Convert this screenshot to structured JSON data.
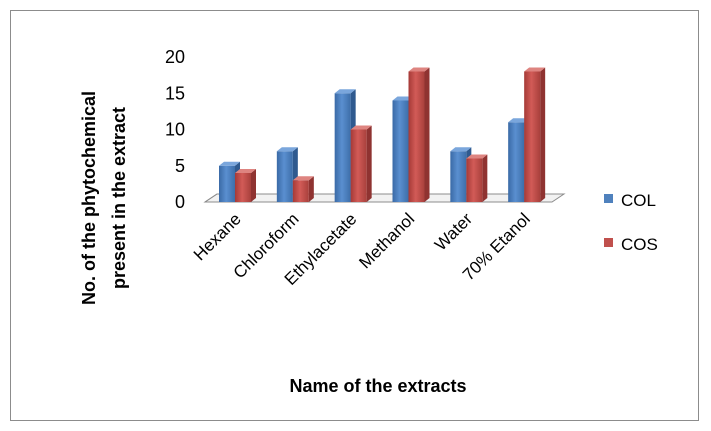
{
  "chart_data": {
    "type": "bar",
    "title": "",
    "xlabel": "Name of the extracts",
    "ylabel_lines": [
      "No. of the phytochemical",
      "present in the extract"
    ],
    "categories": [
      "Hexane",
      "Chloroform",
      "Ethylacetate",
      "Methanol",
      "Water",
      "70% Etanol"
    ],
    "series": [
      {
        "name": "COL",
        "color": "#4f81bd",
        "values": [
          5,
          7,
          15,
          14,
          7,
          11
        ]
      },
      {
        "name": "COS",
        "color": "#c0504d",
        "values": [
          4,
          3,
          10,
          18,
          6,
          18
        ]
      }
    ],
    "ylim": [
      0,
      20
    ],
    "yticks": [
      0,
      5,
      10,
      15,
      20
    ],
    "grid": false,
    "legend_position": "right",
    "style": "3d-clustered"
  }
}
